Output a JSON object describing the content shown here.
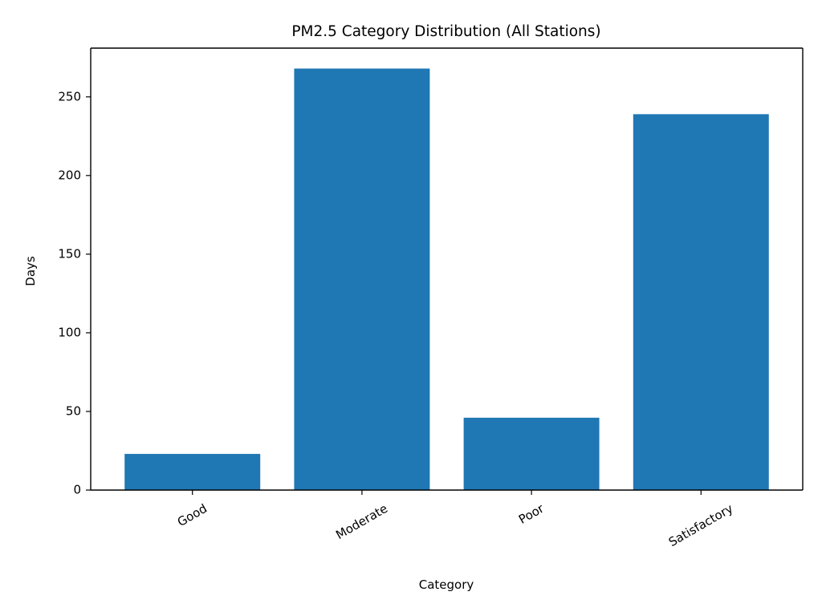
{
  "chart_data": {
    "type": "bar",
    "title": "PM2.5 Category Distribution (All Stations)",
    "xlabel": "Category",
    "ylabel": "Days",
    "categories": [
      "Good",
      "Moderate",
      "Poor",
      "Satisfactory"
    ],
    "values": [
      23,
      268,
      46,
      239
    ],
    "ylim": [
      0,
      281
    ],
    "yticks": [
      0,
      50,
      100,
      150,
      200,
      250
    ],
    "x_tick_rotation_deg": 30,
    "grid": false,
    "legend": "none",
    "bar_color": "#1f77b4"
  }
}
